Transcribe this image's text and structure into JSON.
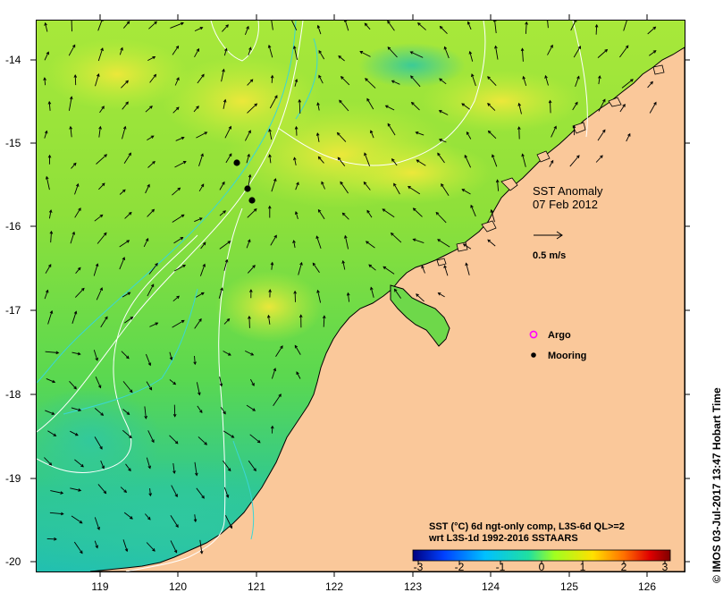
{
  "map": {
    "title_line1": "SST Anomaly",
    "title_line2": "07 Feb 2012",
    "scale_label": "0.5 m/s",
    "lon_ticks": [
      "119",
      "120",
      "121",
      "122",
      "123",
      "124",
      "125",
      "126"
    ],
    "lat_ticks": [
      "-14",
      "-15",
      "-16",
      "-17",
      "-18",
      "-19",
      "-20"
    ],
    "legend": {
      "argo_label": "Argo",
      "mooring_label": "Mooring",
      "colors": {
        "argo": "#ff00ff",
        "mooring": "#000000"
      }
    },
    "colorbar": {
      "title_line1": "SST (°C) 6d ngt-only comp, L3S-6d QL>=2",
      "title_line2": "wrt L3S-1d 1992-2016 SSTAARS",
      "ticks": [
        "-3",
        "-2",
        "-1",
        "0",
        "1",
        "2",
        "3"
      ],
      "colors": [
        "#00007f",
        "#0040ff",
        "#00c0ff",
        "#20e0a0",
        "#a0ff20",
        "#ffe000",
        "#ff7000",
        "#e00000",
        "#7f0000"
      ]
    },
    "credit": "© IMOS 03-Jul-2017 13:47 Hobart Time",
    "colors": {
      "ocean_main": "#7ee03a",
      "ocean_warm": "#c8f03a",
      "ocean_cool": "#37d08a",
      "land": "#fac89a",
      "contour_white": "#ffffff",
      "contour_cyan": "#3ad6d6"
    }
  }
}
